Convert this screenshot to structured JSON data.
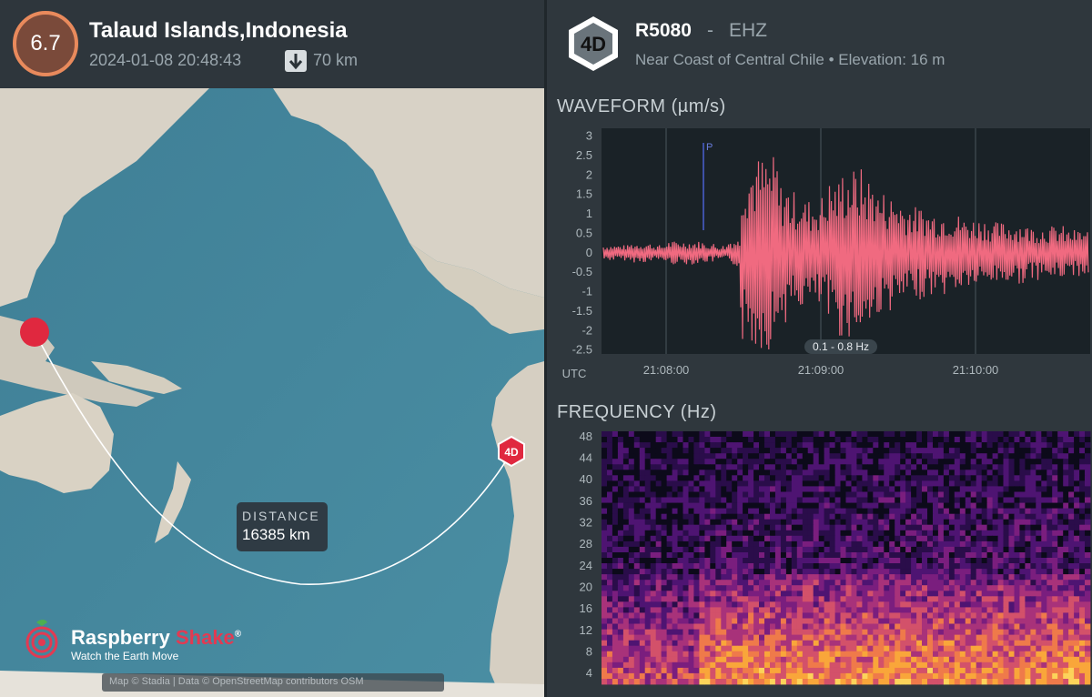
{
  "quake": {
    "magnitude": "6.7",
    "title": "Talaud Islands,Indonesia",
    "datetime": "2024-01-08 20:48:43",
    "depth": "70 km"
  },
  "map": {
    "distance_label": "DISTANCE",
    "distance_value": "16385 km",
    "station_marker": "4D",
    "brand_name_1": "Raspberry",
    "brand_name_2": "Shake",
    "brand_reg": "®",
    "brand_tagline": "Watch the Earth Move",
    "attribution": "Map © Stadia | Data © OpenStreetMap contributors OSM",
    "colors": {
      "ocean": "#4b8aa0",
      "land": "#d9d3c8",
      "epicenter": "#e0283f",
      "path": "#ffffff"
    }
  },
  "station": {
    "badge": "4D",
    "code": "R5080",
    "separator": "-",
    "channel": "EHZ",
    "location": "Near Coast of Central Chile • Elevation: 16 m"
  },
  "waveform": {
    "title": "WAVEFORM (µm/s)",
    "filter": "0.1 - 0.8 Hz",
    "phase_marker": "P",
    "utc_label": "UTC",
    "y_ticks": [
      "3",
      "2.5",
      "2",
      "1.5",
      "1",
      "0.5",
      "0",
      "-0.5",
      "-1",
      "-1.5",
      "-2",
      "-2.5"
    ],
    "x_ticks": [
      "21:08:00",
      "21:09:00",
      "21:10:00"
    ],
    "color": "#f06a80"
  },
  "frequency": {
    "title": "FREQUENCY (Hz)",
    "y_ticks": [
      "48",
      "44",
      "40",
      "36",
      "32",
      "28",
      "24",
      "20",
      "16",
      "12",
      "8",
      "4"
    ]
  },
  "chart_data": [
    {
      "type": "line",
      "title": "WAVEFORM (µm/s)",
      "xlabel": "UTC",
      "ylabel": "µm/s",
      "x_ticks": [
        "21:08:00",
        "21:09:00",
        "21:10:00"
      ],
      "ylim": [
        -2.6,
        3.2
      ],
      "series": [
        {
          "values": [
            0.1,
            -0.2,
            0.15,
            -0.25,
            0.2,
            -0.15,
            0.3,
            -0.3,
            0.25,
            -0.2,
            0.1,
            -0.35,
            2.4,
            -2.5,
            1.8,
            -1.6,
            1.2,
            -1.4,
            1.5,
            -1.9,
            2.2,
            -2.0,
            1.6,
            -1.5,
            1.3,
            -1.2,
            1.1,
            -1.1,
            1.0,
            -0.9,
            0.9,
            -0.8,
            0.8,
            -0.8,
            0.7,
            -0.7,
            0.7,
            -0.6,
            0.6,
            -0.6
          ]
        }
      ]
    },
    {
      "type": "heatmap",
      "title": "FREQUENCY (Hz)",
      "ylabel": "Hz",
      "ylim": [
        2,
        49
      ],
      "y_ticks": [
        48,
        44,
        40,
        36,
        32,
        28,
        24,
        20,
        16,
        12,
        8,
        4
      ]
    }
  ]
}
